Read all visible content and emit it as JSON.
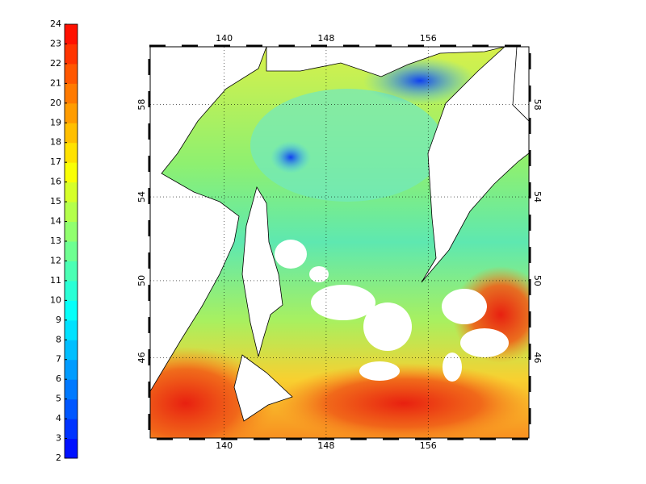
{
  "colorbar": {
    "lim": [
      2,
      24
    ],
    "ticks": [
      2,
      3,
      4,
      5,
      6,
      7,
      8,
      9,
      10,
      11,
      12,
      13,
      14,
      15,
      16,
      17,
      18,
      19,
      20,
      21,
      22,
      23,
      24
    ]
  },
  "map": {
    "lonlim": [
      134.2,
      163.9
    ],
    "latlim": [
      41.5,
      60.3
    ],
    "lonticks": [
      140,
      148,
      156
    ],
    "latticks": [
      46,
      50,
      54,
      58
    ]
  }
}
